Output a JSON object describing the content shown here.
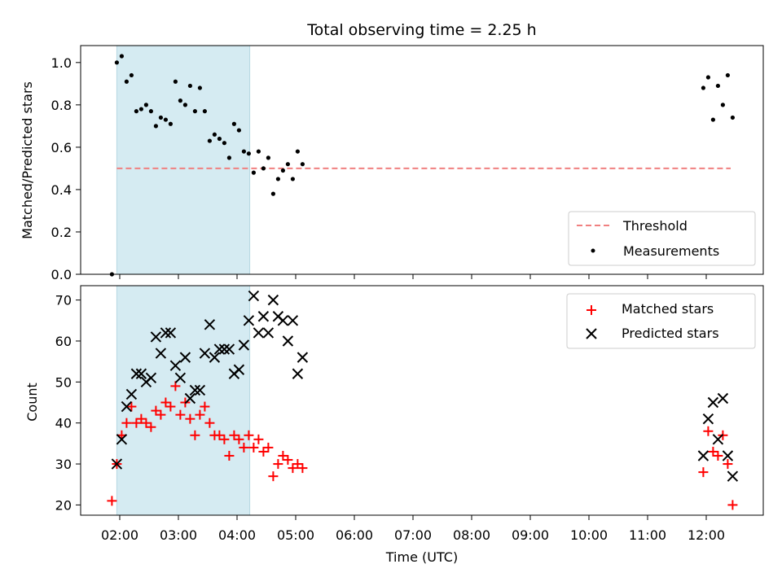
{
  "title": "Total observing time = 2.25 h",
  "xlabel": "Time (UTC)",
  "x_ticks": [
    "02:00",
    "03:00",
    "04:00",
    "05:00",
    "06:00",
    "07:00",
    "08:00",
    "09:00",
    "10:00",
    "11:00",
    "12:00"
  ],
  "shaded_span": [
    "01:57",
    "04:13"
  ],
  "colors": {
    "threshold": "#f08080",
    "measurements": "#000000",
    "matched": "#ff0000",
    "predicted": "#000000",
    "span": "#add8e6"
  },
  "chart_data": [
    {
      "type": "scatter",
      "ylabel": "Matched/Predicted stars",
      "ylim": [
        0,
        1.08
      ],
      "yticks": [
        "0.0",
        "0.2",
        "0.4",
        "0.6",
        "0.8",
        "1.0"
      ],
      "legend": {
        "placement": "bottom-right",
        "entries": [
          "Threshold",
          "Measurements"
        ]
      },
      "threshold": {
        "name": "Threshold",
        "y": 0.5,
        "x_range": [
          "01:57",
          "12:25"
        ],
        "style": "dashed"
      },
      "series": [
        {
          "name": "Measurements",
          "marker": "dot",
          "points": [
            [
              "01:52",
              0.0
            ],
            [
              "01:57",
              1.0
            ],
            [
              "02:02",
              1.03
            ],
            [
              "02:07",
              0.91
            ],
            [
              "02:12",
              0.94
            ],
            [
              "02:17",
              0.77
            ],
            [
              "02:22",
              0.78
            ],
            [
              "02:27",
              0.8
            ],
            [
              "02:32",
              0.77
            ],
            [
              "02:37",
              0.7
            ],
            [
              "02:42",
              0.74
            ],
            [
              "02:47",
              0.73
            ],
            [
              "02:52",
              0.71
            ],
            [
              "02:57",
              0.91
            ],
            [
              "03:02",
              0.82
            ],
            [
              "03:07",
              0.8
            ],
            [
              "03:12",
              0.89
            ],
            [
              "03:17",
              0.77
            ],
            [
              "03:22",
              0.88
            ],
            [
              "03:27",
              0.77
            ],
            [
              "03:32",
              0.63
            ],
            [
              "03:37",
              0.66
            ],
            [
              "03:42",
              0.64
            ],
            [
              "03:47",
              0.62
            ],
            [
              "03:52",
              0.55
            ],
            [
              "03:57",
              0.71
            ],
            [
              "04:02",
              0.68
            ],
            [
              "04:07",
              0.58
            ],
            [
              "04:12",
              0.57
            ],
            [
              "04:17",
              0.48
            ],
            [
              "04:22",
              0.58
            ],
            [
              "04:27",
              0.5
            ],
            [
              "04:32",
              0.55
            ],
            [
              "04:37",
              0.38
            ],
            [
              "04:42",
              0.45
            ],
            [
              "04:47",
              0.49
            ],
            [
              "04:52",
              0.52
            ],
            [
              "04:57",
              0.45
            ],
            [
              "05:02",
              0.58
            ],
            [
              "05:07",
              0.52
            ],
            [
              "11:57",
              0.88
            ],
            [
              "12:02",
              0.93
            ],
            [
              "12:07",
              0.73
            ],
            [
              "12:12",
              0.89
            ],
            [
              "12:17",
              0.8
            ],
            [
              "12:22",
              0.94
            ],
            [
              "12:27",
              0.74
            ]
          ]
        }
      ]
    },
    {
      "type": "scatter",
      "ylabel": "Count",
      "ylim": [
        17.5,
        73.5
      ],
      "yticks": [
        "20",
        "30",
        "40",
        "50",
        "60",
        "70"
      ],
      "legend": {
        "placement": "top-right",
        "entries": [
          "Matched stars",
          "Predicted stars"
        ]
      },
      "series": [
        {
          "name": "Matched stars",
          "marker": "plus",
          "points": [
            [
              "01:52",
              21
            ],
            [
              "01:57",
              30
            ],
            [
              "02:02",
              37
            ],
            [
              "02:07",
              40
            ],
            [
              "02:12",
              44
            ],
            [
              "02:17",
              40
            ],
            [
              "02:22",
              41
            ],
            [
              "02:27",
              40
            ],
            [
              "02:32",
              39
            ],
            [
              "02:37",
              43
            ],
            [
              "02:42",
              42
            ],
            [
              "02:47",
              45
            ],
            [
              "02:52",
              44
            ],
            [
              "02:57",
              49
            ],
            [
              "03:02",
              42
            ],
            [
              "03:07",
              45
            ],
            [
              "03:12",
              41
            ],
            [
              "03:17",
              37
            ],
            [
              "03:22",
              42
            ],
            [
              "03:27",
              44
            ],
            [
              "03:32",
              40
            ],
            [
              "03:37",
              37
            ],
            [
              "03:42",
              37
            ],
            [
              "03:47",
              36
            ],
            [
              "03:52",
              32
            ],
            [
              "03:57",
              37
            ],
            [
              "04:02",
              36
            ],
            [
              "04:07",
              34
            ],
            [
              "04:12",
              37
            ],
            [
              "04:17",
              34
            ],
            [
              "04:22",
              36
            ],
            [
              "04:27",
              33
            ],
            [
              "04:32",
              34
            ],
            [
              "04:37",
              27
            ],
            [
              "04:42",
              30
            ],
            [
              "04:47",
              32
            ],
            [
              "04:52",
              31
            ],
            [
              "04:57",
              29
            ],
            [
              "05:02",
              30
            ],
            [
              "05:07",
              29
            ],
            [
              "11:57",
              28
            ],
            [
              "12:02",
              38
            ],
            [
              "12:07",
              33
            ],
            [
              "12:12",
              32
            ],
            [
              "12:17",
              37
            ],
            [
              "12:22",
              30
            ],
            [
              "12:27",
              20
            ]
          ]
        },
        {
          "name": "Predicted stars",
          "marker": "x",
          "points": [
            [
              "01:57",
              30
            ],
            [
              "02:02",
              36
            ],
            [
              "02:07",
              44
            ],
            [
              "02:12",
              47
            ],
            [
              "02:17",
              52
            ],
            [
              "02:22",
              52
            ],
            [
              "02:27",
              50
            ],
            [
              "02:32",
              51
            ],
            [
              "02:37",
              61
            ],
            [
              "02:42",
              57
            ],
            [
              "02:47",
              62
            ],
            [
              "02:52",
              62
            ],
            [
              "02:57",
              54
            ],
            [
              "03:02",
              51
            ],
            [
              "03:07",
              56
            ],
            [
              "03:12",
              46
            ],
            [
              "03:17",
              48
            ],
            [
              "03:22",
              48
            ],
            [
              "03:27",
              57
            ],
            [
              "03:32",
              64
            ],
            [
              "03:37",
              56
            ],
            [
              "03:42",
              58
            ],
            [
              "03:47",
              58
            ],
            [
              "03:52",
              58
            ],
            [
              "03:57",
              52
            ],
            [
              "04:02",
              53
            ],
            [
              "04:07",
              59
            ],
            [
              "04:12",
              65
            ],
            [
              "04:17",
              71
            ],
            [
              "04:22",
              62
            ],
            [
              "04:27",
              66
            ],
            [
              "04:32",
              62
            ],
            [
              "04:37",
              70
            ],
            [
              "04:42",
              66
            ],
            [
              "04:47",
              65
            ],
            [
              "04:52",
              60
            ],
            [
              "04:57",
              65
            ],
            [
              "05:02",
              52
            ],
            [
              "05:07",
              56
            ],
            [
              "11:57",
              32
            ],
            [
              "12:02",
              41
            ],
            [
              "12:07",
              45
            ],
            [
              "12:12",
              36
            ],
            [
              "12:17",
              46
            ],
            [
              "12:22",
              32
            ],
            [
              "12:27",
              27
            ]
          ]
        }
      ]
    }
  ]
}
